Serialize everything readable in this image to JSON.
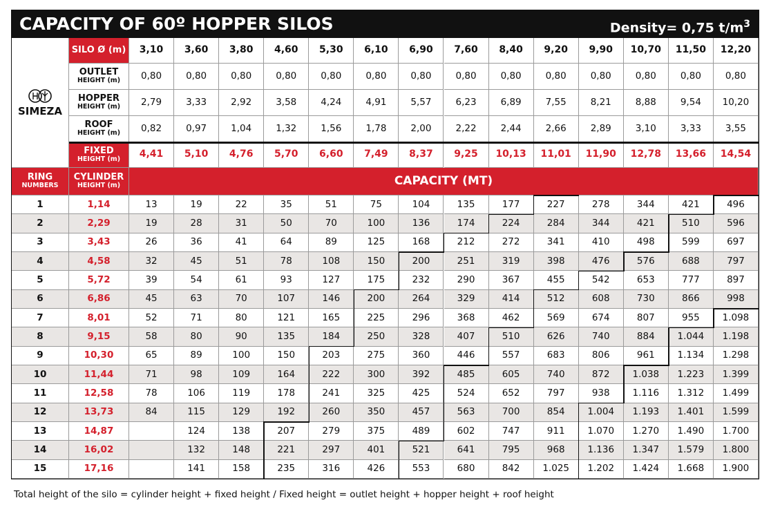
{
  "header": {
    "title": "CAPACITY OF 60º HOPPER SILOS",
    "density": "Density= 0,75 t/m",
    "density_power": "3"
  },
  "logo": "SIMEZA",
  "table": {
    "dimension_rows": [
      {
        "label": "SILO Ø (m)",
        "values": [
          "3,10",
          "3,60",
          "3,80",
          "4,60",
          "5,30",
          "6,10",
          "6,90",
          "7,60",
          "8,40",
          "9,20",
          "9,90",
          "10,70",
          "11,50",
          "12,20"
        ]
      },
      {
        "label": "OUTLET",
        "sublabel": "HEIGHT (m)",
        "values": [
          "0,80",
          "0,80",
          "0,80",
          "0,80",
          "0,80",
          "0,80",
          "0,80",
          "0,80",
          "0,80",
          "0,80",
          "0,80",
          "0,80",
          "0,80",
          "0,80"
        ]
      },
      {
        "label": "HOPPER",
        "sublabel": "HEIGHT (m)",
        "values": [
          "2,79",
          "3,33",
          "2,92",
          "3,58",
          "4,24",
          "4,91",
          "5,57",
          "6,23",
          "6,89",
          "7,55",
          "8,21",
          "8,88",
          "9,54",
          "10,20"
        ]
      },
      {
        "label": "ROOF",
        "sublabel": "HEIGHT (m)",
        "values": [
          "0,82",
          "0,97",
          "1,04",
          "1,32",
          "1,56",
          "1,78",
          "2,00",
          "2,22",
          "2,44",
          "2,66",
          "2,89",
          "3,10",
          "3,33",
          "3,55"
        ]
      },
      {
        "label": "FIXED",
        "sublabel": "HEIGHT (m)",
        "values": [
          "4,41",
          "5,10",
          "4,76",
          "5,70",
          "6,60",
          "7,49",
          "8,37",
          "9,25",
          "10,13",
          "11,01",
          "11,90",
          "12,78",
          "13,66",
          "14,54"
        ]
      }
    ],
    "columns": {
      "ring": "RING",
      "ring_sub": "NUMBERS",
      "cylinder": "CYLINDER",
      "cylinder_sub": "HEIGHT (m)",
      "capacity": "CAPACITY (MT)"
    },
    "rows": [
      [
        "1",
        "1,14",
        "13",
        "19",
        "22",
        "35",
        "51",
        "75",
        "104",
        "135",
        "177",
        "227",
        "278",
        "344",
        "421",
        "496"
      ],
      [
        "2",
        "2,29",
        "19",
        "28",
        "31",
        "50",
        "70",
        "100",
        "136",
        "174",
        "224",
        "284",
        "344",
        "421",
        "510",
        "596"
      ],
      [
        "3",
        "3,43",
        "26",
        "36",
        "41",
        "64",
        "89",
        "125",
        "168",
        "212",
        "272",
        "341",
        "410",
        "498",
        "599",
        "697"
      ],
      [
        "4",
        "4,58",
        "32",
        "45",
        "51",
        "78",
        "108",
        "150",
        "200",
        "251",
        "319",
        "398",
        "476",
        "576",
        "688",
        "797"
      ],
      [
        "5",
        "5,72",
        "39",
        "54",
        "61",
        "93",
        "127",
        "175",
        "232",
        "290",
        "367",
        "455",
        "542",
        "653",
        "777",
        "897"
      ],
      [
        "6",
        "6,86",
        "45",
        "63",
        "70",
        "107",
        "146",
        "200",
        "264",
        "329",
        "414",
        "512",
        "608",
        "730",
        "866",
        "998"
      ],
      [
        "7",
        "8,01",
        "52",
        "71",
        "80",
        "121",
        "165",
        "225",
        "296",
        "368",
        "462",
        "569",
        "674",
        "807",
        "955",
        "1.098"
      ],
      [
        "8",
        "9,15",
        "58",
        "80",
        "90",
        "135",
        "184",
        "250",
        "328",
        "407",
        "510",
        "626",
        "740",
        "884",
        "1.044",
        "1.198"
      ],
      [
        "9",
        "10,30",
        "65",
        "89",
        "100",
        "150",
        "203",
        "275",
        "360",
        "446",
        "557",
        "683",
        "806",
        "961",
        "1.134",
        "1.298"
      ],
      [
        "10",
        "11,44",
        "71",
        "98",
        "109",
        "164",
        "222",
        "300",
        "392",
        "485",
        "605",
        "740",
        "872",
        "1.038",
        "1.223",
        "1.399"
      ],
      [
        "11",
        "12,58",
        "78",
        "106",
        "119",
        "178",
        "241",
        "325",
        "425",
        "524",
        "652",
        "797",
        "938",
        "1.116",
        "1.312",
        "1.499"
      ],
      [
        "12",
        "13,73",
        "84",
        "115",
        "129",
        "192",
        "260",
        "350",
        "457",
        "563",
        "700",
        "854",
        "1.004",
        "1.193",
        "1.401",
        "1.599"
      ],
      [
        "13",
        "14,87",
        null,
        "124",
        "138",
        "207",
        "279",
        "375",
        "489",
        "602",
        "747",
        "911",
        "1.070",
        "1.270",
        "1.490",
        "1.700"
      ],
      [
        "14",
        "16,02",
        null,
        "132",
        "148",
        "221",
        "297",
        "401",
        "521",
        "641",
        "795",
        "968",
        "1.136",
        "1.347",
        "1.579",
        "1.800"
      ],
      [
        "15",
        "17,16",
        null,
        "141",
        "158",
        "235",
        "316",
        "426",
        "553",
        "680",
        "842",
        "1.025",
        "1.202",
        "1.424",
        "1.668",
        "1.900"
      ]
    ]
  },
  "footer": "Total height of the silo = cylinder height + fixed height / Fixed height = outlet height + hopper height + roof height"
}
